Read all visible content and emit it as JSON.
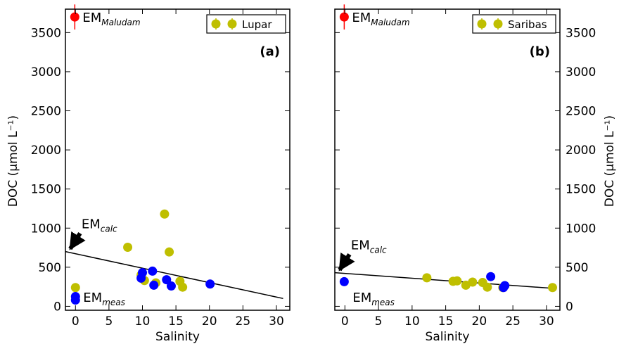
{
  "chart_data": [
    {
      "type": "scatter",
      "panel_label": "(a)",
      "xlabel": "Salinity",
      "ylabel": "DOC (μmol L⁻¹)",
      "xlim": [
        -1.5,
        32
      ],
      "ylim": [
        -50,
        3800
      ],
      "xticks": [
        0,
        5,
        10,
        15,
        20,
        25,
        30
      ],
      "yticks": [
        0,
        500,
        1000,
        1500,
        2000,
        2500,
        3000,
        3500
      ],
      "legend": {
        "position": "top-right",
        "entries": [
          "Lupar"
        ]
      },
      "colors": {
        "olive": "#bfbf00",
        "blue": "#0000ff",
        "red": "#ff0000"
      },
      "series": [
        {
          "name": "Lupar",
          "color": "olive",
          "points": [
            [
              0,
              240
            ],
            [
              7.8,
              755
            ],
            [
              9.8,
              400
            ],
            [
              10.3,
              330
            ],
            [
              12,
              300
            ],
            [
              13.3,
              1180
            ],
            [
              14,
              695
            ],
            [
              15.6,
              320
            ],
            [
              16,
              245
            ]
          ]
        },
        {
          "color": "blue",
          "points": [
            [
              0,
              125
            ],
            [
              0,
              80
            ],
            [
              9.8,
              360
            ],
            [
              10,
              430
            ],
            [
              11.5,
              450
            ],
            [
              11.7,
              270
            ],
            [
              13.6,
              340
            ],
            [
              14.3,
              260
            ],
            [
              20.1,
              285
            ]
          ]
        }
      ],
      "mixing_line": {
        "x": [
          -1.5,
          31
        ],
        "y": [
          700,
          100
        ]
      },
      "annotations": {
        "em_maludam": {
          "label": "EM",
          "sub": "Maludam",
          "x": -0.1,
          "y": 3700,
          "yerr": 40
        },
        "em_calc": {
          "label": "EM",
          "sub": "calc",
          "arrow_to": [
            -1.2,
            700
          ]
        },
        "em_meas": {
          "label": "EM",
          "sub": "meas"
        }
      }
    },
    {
      "type": "scatter",
      "panel_label": "(b)",
      "xlabel": "Salinity",
      "ylabel": "DOC (μmol L⁻¹)",
      "xlim": [
        -1.5,
        32
      ],
      "ylim": [
        -50,
        3800
      ],
      "xticks": [
        0,
        5,
        10,
        15,
        20,
        25,
        30
      ],
      "yticks": [
        0,
        500,
        1000,
        1500,
        2000,
        2500,
        3000,
        3500
      ],
      "yaxis_side": "right",
      "legend": {
        "position": "top-right",
        "entries": [
          "Saribas"
        ]
      },
      "colors": {
        "olive": "#bfbf00",
        "blue": "#0000ff",
        "red": "#ff0000"
      },
      "series": [
        {
          "name": "Saribas",
          "color": "olive",
          "points": [
            [
              12.2,
              365
            ],
            [
              16.1,
              320
            ],
            [
              16.7,
              325
            ],
            [
              18,
              270
            ],
            [
              19,
              310
            ],
            [
              20.5,
              305
            ],
            [
              21.2,
              245
            ],
            [
              23.5,
              240
            ],
            [
              30.9,
              240
            ]
          ]
        },
        {
          "color": "blue",
          "points": [
            [
              -0.1,
              315
            ],
            [
              21.7,
              380
            ],
            [
              23.6,
              240
            ],
            [
              23.8,
              265
            ]
          ]
        }
      ],
      "mixing_line": {
        "x": [
          -1.5,
          31
        ],
        "y": [
          430,
          230
        ]
      },
      "annotations": {
        "em_maludam": {
          "label": "EM",
          "sub": "Maludam",
          "x": -0.1,
          "y": 3700,
          "yerr": 40
        },
        "em_calc": {
          "label": "EM",
          "sub": "calc",
          "arrow_to": [
            -1.2,
            430
          ]
        },
        "em_meas": {
          "label": "EM",
          "sub": "meas"
        }
      }
    }
  ]
}
